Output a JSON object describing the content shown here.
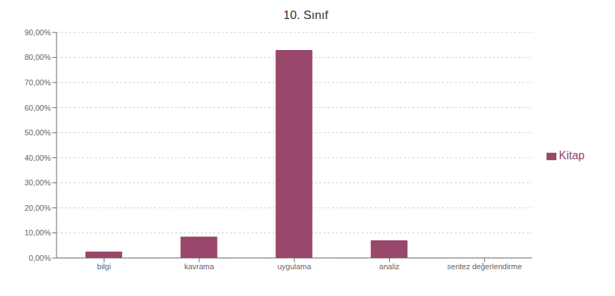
{
  "chart_data": {
    "type": "bar",
    "title": "10. Sınıf",
    "categories": [
      "bilgi",
      "kavrama",
      "uygulama",
      "analiz",
      "sentez değerlendirme"
    ],
    "series": [
      {
        "name": "Kitap",
        "color": "#99476b",
        "values": [
          0.0256,
          0.0851,
          0.8298,
          0.0702,
          0.0
        ]
      }
    ],
    "ylim": [
      0,
      0.9
    ],
    "yticks": [
      {
        "value": 0.0,
        "label": "0,00%"
      },
      {
        "value": 0.1,
        "label": "10,00%"
      },
      {
        "value": 0.2,
        "label": "20,00%"
      },
      {
        "value": 0.3,
        "label": "30,00%"
      },
      {
        "value": 0.4,
        "label": "40,00%"
      },
      {
        "value": 0.5,
        "label": "50,00%"
      },
      {
        "value": 0.6,
        "label": "60,00%"
      },
      {
        "value": 0.7,
        "label": "70,00%"
      },
      {
        "value": 0.8,
        "label": "80,00%"
      },
      {
        "value": 0.9,
        "label": "90,00%"
      }
    ],
    "grid": true,
    "legend": "right"
  }
}
